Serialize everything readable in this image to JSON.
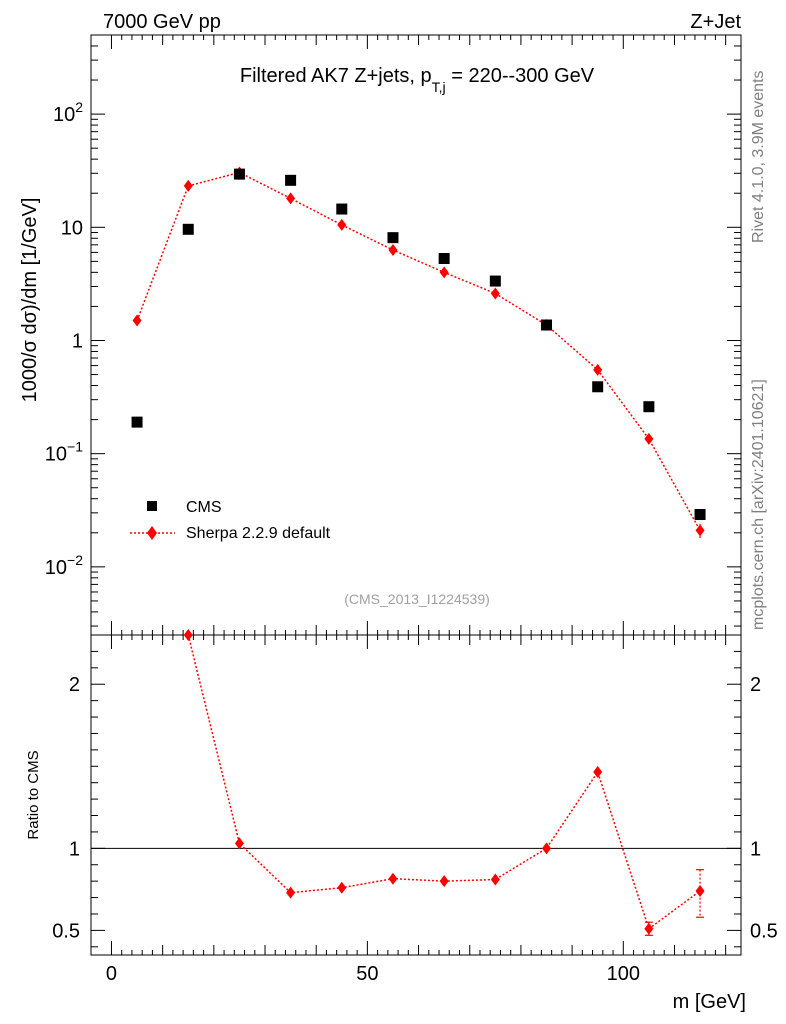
{
  "header": {
    "left_label": "7000 GeV pp",
    "right_label": "Z+Jet"
  },
  "side_labels": {
    "rivet": "Rivet 4.1.0,  3.9M events",
    "mcplots": "mcplots.cern.ch [arXiv:2401.10621]"
  },
  "chart_data": [
    {
      "panel": "main",
      "type": "scatter",
      "y_scale": "log",
      "title_main": "Filtered AK7 Z+jets, p",
      "title_sub": "T,j",
      "title_rest": " = 220--300 GeV",
      "ylabel": "1000/σ  dσ)/dm [1/GeV]",
      "xlabel": "",
      "xlim": [
        -4,
        123
      ],
      "ylim": [
        0.0025,
        500
      ],
      "watermark": "(CMS_2013_I1224539)",
      "y_tick_labels": [
        {
          "base": "10",
          "exp": "−2",
          "value": 0.01
        },
        {
          "base": "10",
          "exp": "−1",
          "value": 0.1
        },
        {
          "text": "1",
          "value": 1
        },
        {
          "text": "10",
          "value": 10
        },
        {
          "base": "10",
          "exp": "2",
          "value": 100
        }
      ],
      "series": [
        {
          "name": "CMS",
          "style": "markers",
          "marker": "square",
          "color": "#000000",
          "x": [
            5,
            15,
            25,
            35,
            45,
            55,
            65,
            75,
            85,
            95,
            105,
            115
          ],
          "y": [
            0.19,
            9.6,
            29.5,
            26,
            14.5,
            8.1,
            5.3,
            3.35,
            1.37,
            0.39,
            0.26,
            0.029
          ]
        },
        {
          "name": "Sherpa 2.2.9 default",
          "style": "dotted-line-markers",
          "marker": "diamond",
          "color": "#ff0000",
          "x": [
            5,
            15,
            25,
            35,
            45,
            55,
            65,
            75,
            85,
            95,
            105,
            115
          ],
          "y": [
            1.5,
            23.2,
            30.5,
            18,
            10.5,
            6.3,
            4.0,
            2.6,
            1.37,
            0.55,
            0.135,
            0.021
          ],
          "yerr": [
            0,
            0,
            0,
            0,
            0,
            0,
            0,
            0,
            0,
            0,
            0.01,
            0.003
          ]
        }
      ],
      "legend": {
        "position": "lower-left",
        "entries": [
          "CMS",
          "Sherpa 2.2.9 default"
        ]
      }
    },
    {
      "panel": "ratio",
      "type": "line",
      "ylabel": "Ratio to CMS",
      "xlabel": "m [GeV]",
      "xlim": [
        -4,
        123
      ],
      "ylim": [
        0.35,
        2.3
      ],
      "y_ticks": [
        0.5,
        1,
        2
      ],
      "y_tick_labels": [
        "0.5",
        "1",
        "2"
      ],
      "x_ticks": [
        0,
        50,
        100
      ],
      "x_tick_labels": [
        "0",
        "50",
        "100"
      ],
      "reference_line": 1,
      "series": [
        {
          "name": "Sherpa 2.2.9 default / CMS",
          "color": "#ff0000",
          "x": [
            15,
            25,
            35,
            45,
            55,
            65,
            75,
            85,
            95,
            105,
            115
          ],
          "y": [
            2.3,
            1.03,
            0.73,
            0.76,
            0.815,
            0.8,
            0.81,
            1.0,
            1.465,
            0.51,
            0.74
          ],
          "yerr_low": [
            0,
            0,
            0,
            0,
            0,
            0,
            0,
            0,
            0,
            0.04,
            0.16
          ],
          "yerr_high": [
            0,
            0,
            0,
            0,
            0,
            0,
            0,
            0,
            0,
            0.04,
            0.13
          ]
        }
      ]
    }
  ]
}
